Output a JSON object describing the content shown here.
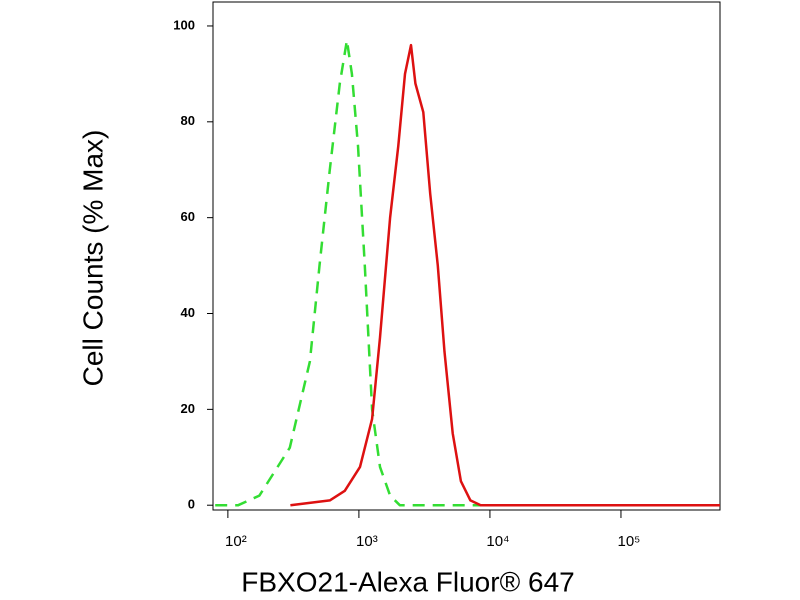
{
  "chart_data": {
    "type": "line",
    "xlabel": "FBXO21-Alexa Fluor® 647",
    "ylabel": "Cell Counts (% Max)",
    "xscale": "log",
    "xlim": [
      77,
      570000
    ],
    "ylim": [
      -1,
      105
    ],
    "xticks": [
      {
        "value": 100,
        "label": "10²"
      },
      {
        "value": 1000,
        "label": "10³"
      },
      {
        "value": 10000,
        "label": "10⁴"
      },
      {
        "value": 100000,
        "label": "10⁵"
      }
    ],
    "yticks": [
      0,
      20,
      40,
      60,
      80,
      100
    ],
    "series": [
      {
        "color": "#33dd33",
        "style": "dashed",
        "x": [
          80,
          120,
          174,
          297,
          423,
          500,
          600,
          715,
          810,
          885,
          985,
          1110,
          1260,
          1450,
          1730,
          2050,
          570000
        ],
        "values": [
          0,
          0,
          2,
          12,
          30,
          50,
          70,
          88,
          97,
          90,
          75,
          50,
          20,
          8,
          2,
          0,
          0
        ]
      },
      {
        "color": "#dd1111",
        "style": "solid",
        "x": [
          300,
          600,
          780,
          1020,
          1260,
          1450,
          1730,
          2000,
          2250,
          2500,
          2700,
          3100,
          3500,
          4000,
          4500,
          5200,
          6000,
          7100,
          8500,
          570000
        ],
        "values": [
          0,
          1,
          3,
          8,
          18,
          35,
          60,
          75,
          90,
          96,
          88,
          82,
          65,
          50,
          32,
          15,
          5,
          1,
          0,
          0
        ]
      }
    ]
  }
}
